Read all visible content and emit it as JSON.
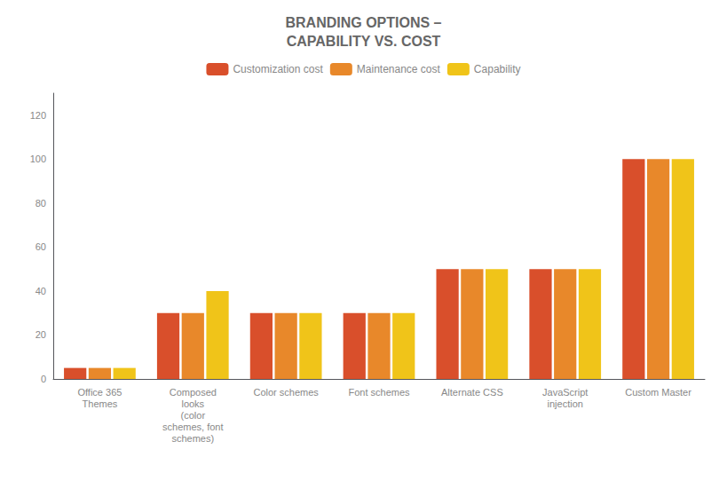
{
  "chart_data": {
    "type": "bar",
    "title": "BRANDING OPTIONS –\nCAPABILITY VS. COST",
    "categories": [
      "Office 365\nThemes",
      "Composed\nlooks\n(color\nschemes, font\nschemes)",
      "Color schemes",
      "Font schemes",
      "Alternate CSS",
      "JavaScript\ninjection",
      "Custom Master"
    ],
    "series": [
      {
        "name": "Customization cost",
        "color": "#D94F2B",
        "values": [
          5,
          30,
          30,
          30,
          50,
          50,
          100
        ]
      },
      {
        "name": "Maintenance cost",
        "color": "#E8882A",
        "values": [
          5,
          30,
          30,
          30,
          50,
          50,
          100
        ]
      },
      {
        "name": "Capability",
        "color": "#F0C419",
        "values": [
          5,
          40,
          30,
          30,
          50,
          50,
          100
        ]
      }
    ],
    "ylim": [
      0,
      130
    ],
    "yticks": [
      0,
      20,
      40,
      60,
      80,
      100,
      120
    ],
    "grid": false
  }
}
